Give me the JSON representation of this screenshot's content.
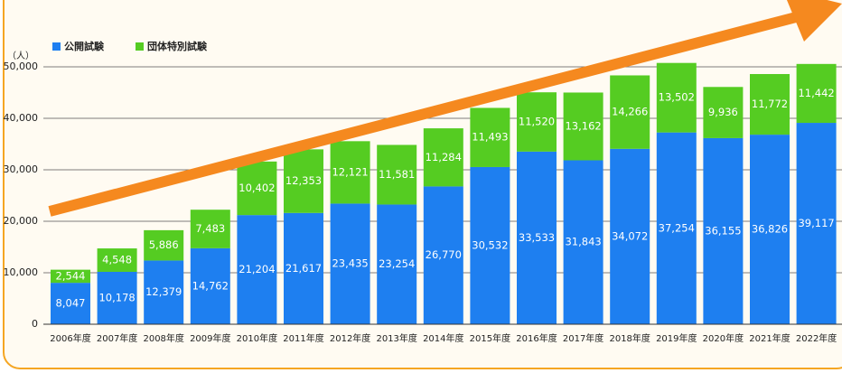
{
  "chart_data": {
    "type": "stacked_bar",
    "y_label": "（人）",
    "categories": [
      "2006年度",
      "2007年度",
      "2008年度",
      "2009年度",
      "2010年度",
      "2011年度",
      "2012年度",
      "2013年度",
      "2014年度",
      "2015年度",
      "2016年度",
      "2017年度",
      "2018年度",
      "2019年度",
      "2020年度",
      "2021年度",
      "2022年度"
    ],
    "series": [
      {
        "name": "公開試験",
        "color": "#1e7ff0",
        "values": [
          8047,
          10178,
          12379,
          14762,
          21204,
          21617,
          23435,
          23254,
          26770,
          30532,
          33533,
          31843,
          34072,
          37254,
          36155,
          36826,
          39117
        ],
        "value_labels": [
          "8,047",
          "10,178",
          "12,379",
          "14,762",
          "21,204",
          "21,617",
          "23,435",
          "23,254",
          "26,770",
          "30,532",
          "33,533",
          "31,843",
          "34,072",
          "37,254",
          "36,155",
          "36,826",
          "39,117"
        ]
      },
      {
        "name": "団体特別試験",
        "color": "#55cc22",
        "values": [
          2544,
          4548,
          5886,
          7483,
          10402,
          12353,
          12121,
          11581,
          11284,
          11493,
          11520,
          13162,
          14266,
          13502,
          9936,
          11772,
          11442
        ],
        "value_labels": [
          "2,544",
          "4,548",
          "5,886",
          "7,483",
          "10,402",
          "12,353",
          "12,121",
          "11,581",
          "11,284",
          "11,493",
          "11,520",
          "13,162",
          "14,266",
          "13,502",
          "9,936",
          "11,772",
          "11,442"
        ]
      }
    ],
    "ylim": [
      0,
      50000
    ],
    "yticks": [
      0,
      {
        "value": 10000,
        "label": "10,000"
      },
      {
        "value": 20000,
        "label": "20,000"
      },
      {
        "value": 30000,
        "label": "30,000"
      },
      {
        "value": 40000,
        "label": "40,000"
      },
      {
        "value": 50000,
        "label": "50,000"
      }
    ],
    "grid": true
  }
}
